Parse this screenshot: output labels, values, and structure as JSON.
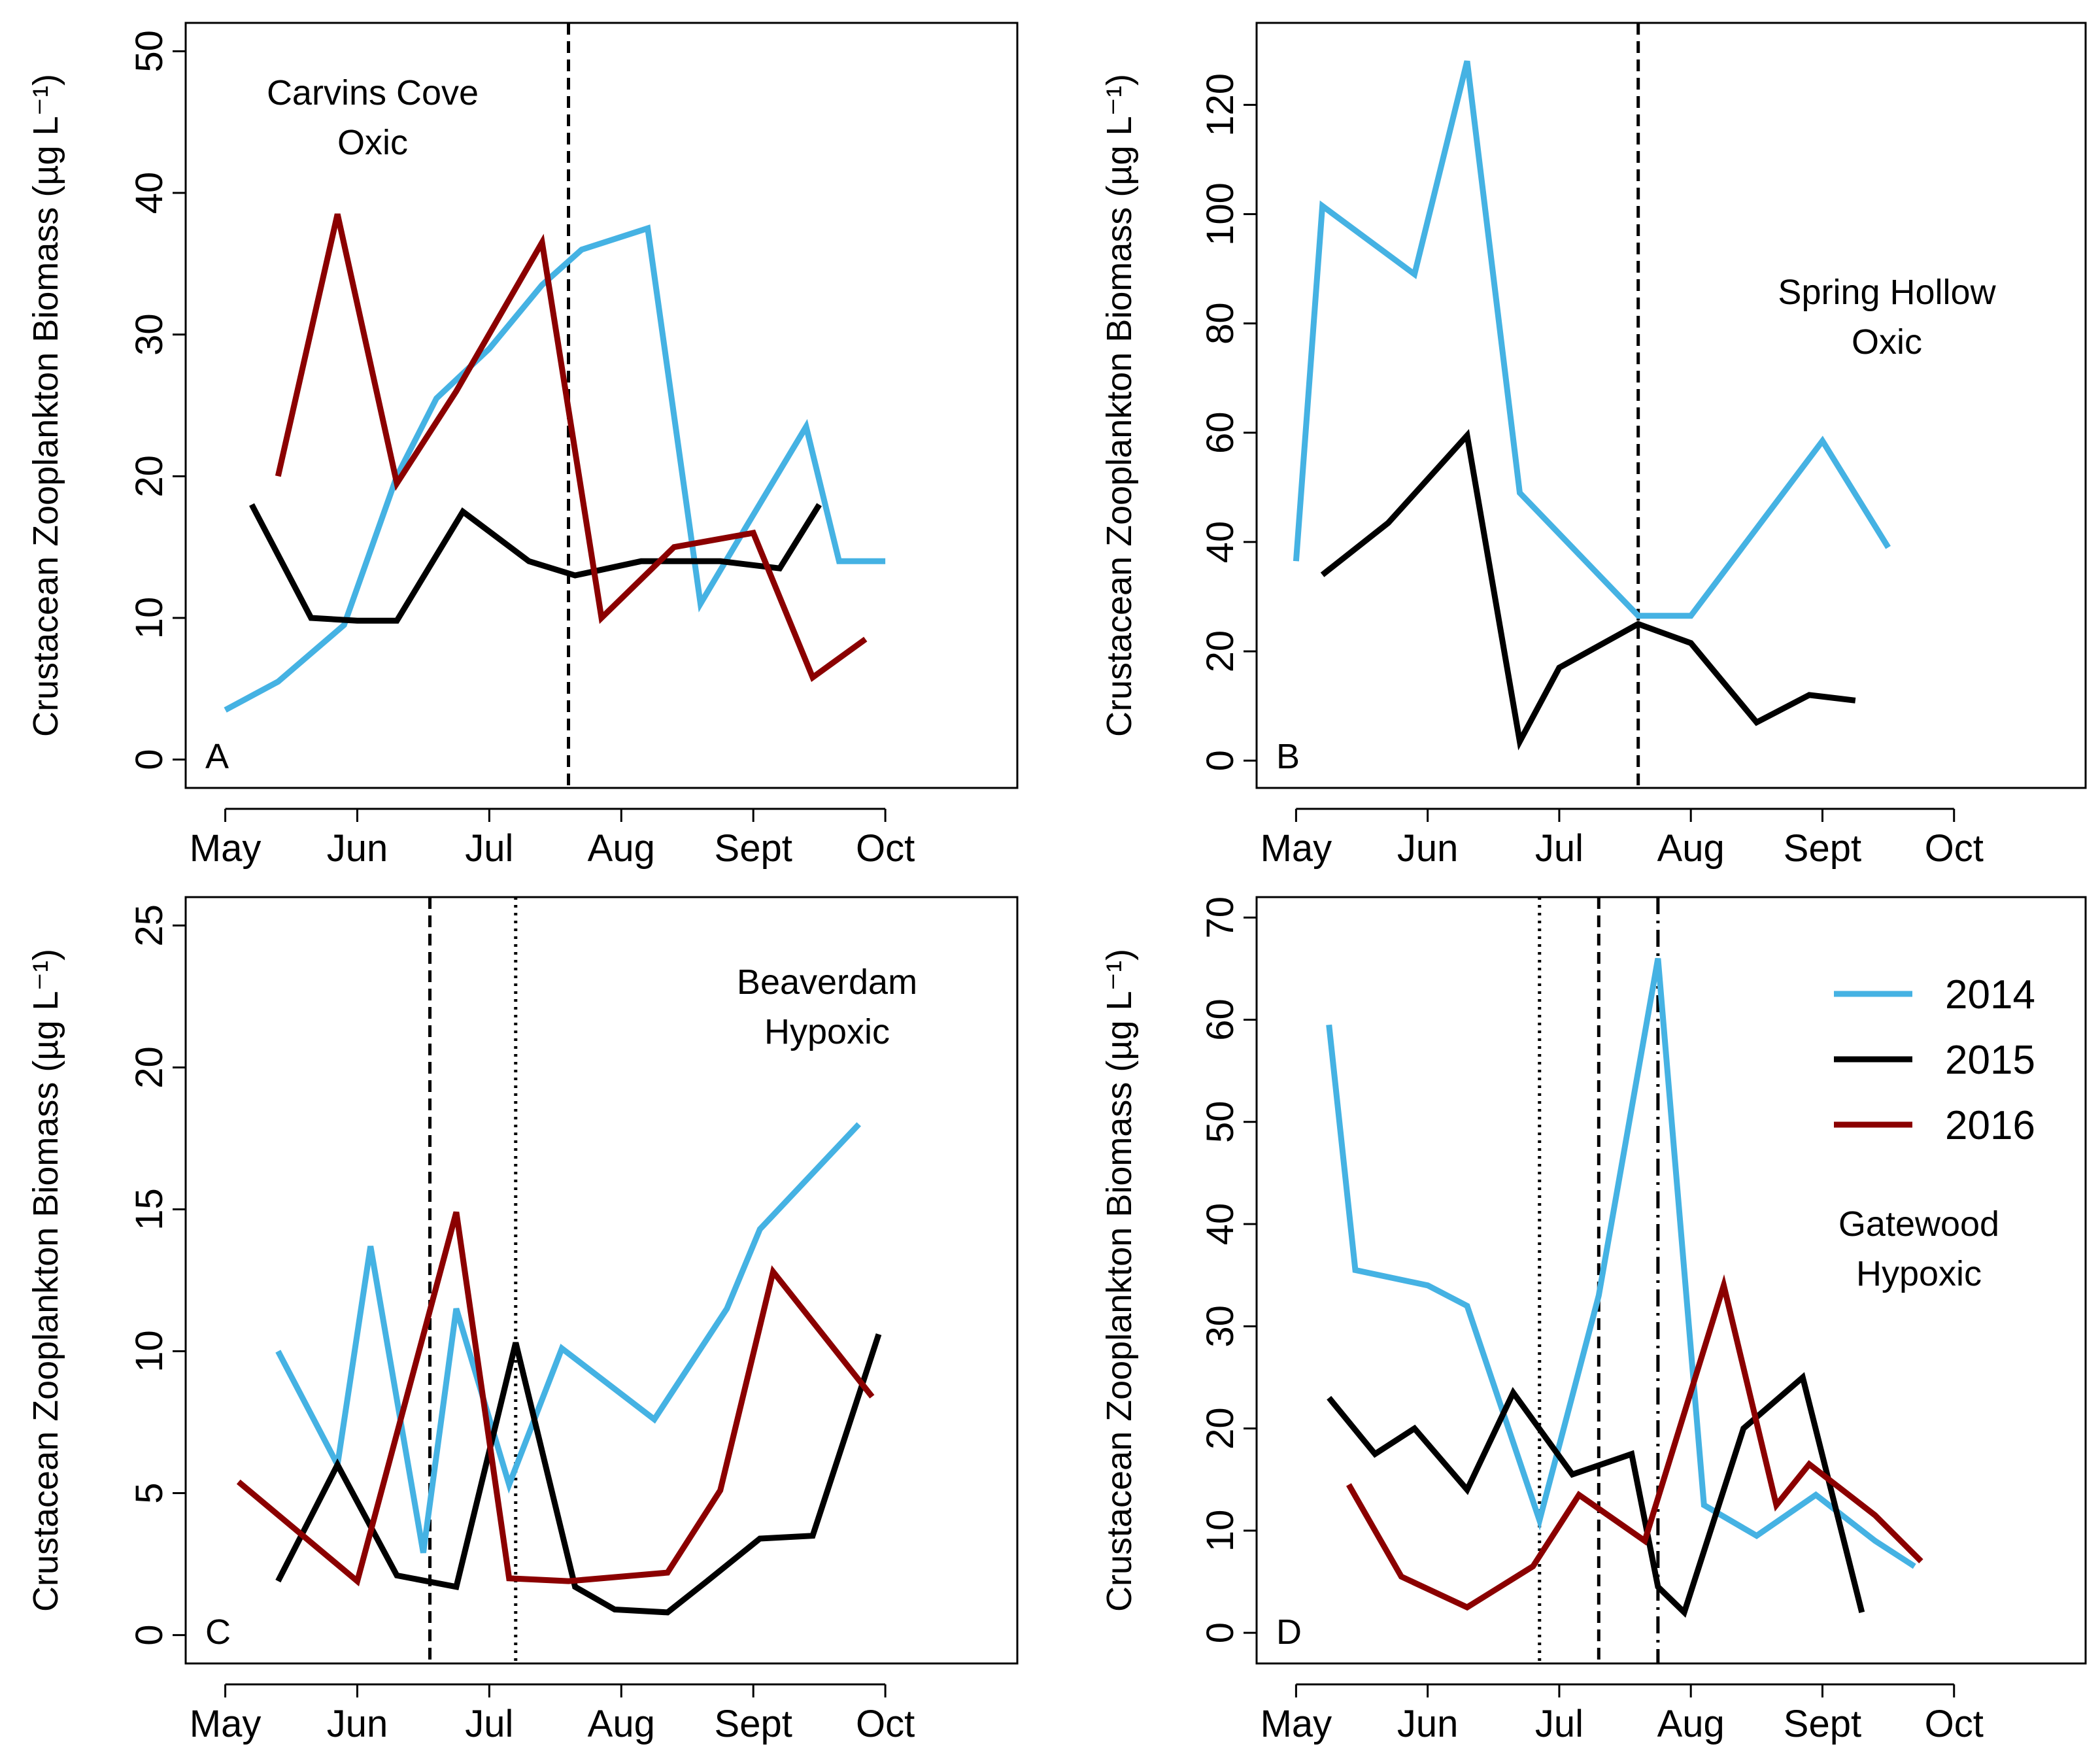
{
  "chart_data": [
    {
      "type": "line",
      "panel": "A",
      "annotation": [
        "Carvins Cove",
        "Oxic"
      ],
      "ylabel": "Crustacean Zooplankton Biomass (µg L⁻¹)",
      "yticks": [
        0,
        10,
        20,
        30,
        40,
        50
      ],
      "ylim": [
        -2,
        52
      ],
      "xticks": [
        "May",
        "Jun",
        "Jul",
        "Aug",
        "Sept",
        "Oct"
      ],
      "xlim": [
        -0.3,
        6.0
      ],
      "vlines": [
        {
          "x": 2.6,
          "style": "dashed"
        }
      ],
      "series": [
        {
          "name": "2014",
          "x": [
            0.0,
            0.4,
            0.9,
            1.3,
            1.6,
            2.0,
            2.4,
            2.7,
            3.2,
            3.6,
            3.95,
            4.4,
            4.65,
            5.0
          ],
          "values": [
            3.5,
            5.5,
            9.5,
            20.0,
            25.5,
            29.0,
            33.5,
            36.0,
            37.5,
            11.0,
            16.5,
            23.5,
            14.0,
            14.0
          ]
        },
        {
          "name": "2015",
          "x": [
            0.2,
            0.65,
            1.0,
            1.3,
            1.8,
            2.3,
            2.65,
            3.15,
            3.75,
            4.2,
            4.5
          ],
          "values": [
            18.0,
            10.0,
            9.8,
            9.8,
            17.5,
            14.0,
            13.0,
            14.0,
            14.0,
            13.5,
            18.0
          ]
        },
        {
          "name": "2016",
          "x": [
            0.4,
            0.85,
            1.3,
            1.75,
            2.4,
            2.85,
            3.4,
            4.0,
            4.45,
            4.85
          ],
          "values": [
            20.0,
            38.5,
            19.5,
            26.0,
            36.5,
            10.0,
            15.0,
            16.0,
            5.8,
            8.5
          ]
        }
      ]
    },
    {
      "type": "line",
      "panel": "B",
      "annotation": [
        "Spring Hollow",
        "Oxic"
      ],
      "ylabel": "Crustacean Zooplankton Biomass (µg L⁻¹)",
      "yticks": [
        0,
        20,
        40,
        60,
        80,
        100,
        120
      ],
      "ylim": [
        -5,
        135
      ],
      "xticks": [
        "May",
        "Jun",
        "Jul",
        "Aug",
        "Sept",
        "Oct"
      ],
      "xlim": [
        -0.3,
        6.0
      ],
      "vlines": [
        {
          "x": 2.6,
          "style": "dashed"
        }
      ],
      "series": [
        {
          "name": "2014",
          "x": [
            0.0,
            0.2,
            0.9,
            1.3,
            1.7,
            2.6,
            3.0,
            4.0,
            4.5
          ],
          "values": [
            36.5,
            101.5,
            89.0,
            128.0,
            49.0,
            26.5,
            26.5,
            58.5,
            39.0
          ]
        },
        {
          "name": "2015",
          "x": [
            0.2,
            0.7,
            1.3,
            1.7,
            2.0,
            2.6,
            3.0,
            3.5,
            3.9,
            4.25
          ],
          "values": [
            34.0,
            43.5,
            59.5,
            3.5,
            17.0,
            25.0,
            21.5,
            7.0,
            12.0,
            11.0
          ]
        }
      ]
    },
    {
      "type": "line",
      "panel": "C",
      "annotation": [
        "Beaverdam",
        "Hypoxic"
      ],
      "ylabel": "Crustacean Zooplankton Biomass (µg L⁻¹)",
      "yticks": [
        0,
        5,
        10,
        15,
        20,
        25
      ],
      "ylim": [
        -1,
        26
      ],
      "xticks": [
        "May",
        "Jun",
        "Jul",
        "Aug",
        "Sept",
        "Oct"
      ],
      "xlim": [
        -0.3,
        6.0
      ],
      "vlines": [
        {
          "x": 1.55,
          "style": "dashed"
        },
        {
          "x": 2.2,
          "style": "dotted"
        }
      ],
      "series": [
        {
          "name": "2014",
          "x": [
            0.4,
            0.85,
            1.1,
            1.5,
            1.75,
            2.15,
            2.55,
            3.25,
            3.8,
            4.05,
            4.8
          ],
          "values": [
            10.0,
            6.0,
            13.7,
            2.9,
            11.5,
            5.3,
            10.1,
            7.6,
            11.5,
            14.3,
            18.0
          ]
        },
        {
          "name": "2015",
          "x": [
            0.4,
            0.85,
            1.3,
            1.75,
            2.2,
            2.65,
            2.95,
            3.35,
            3.65,
            4.05,
            4.45,
            4.95
          ],
          "values": [
            1.9,
            6.0,
            2.1,
            1.7,
            10.3,
            1.7,
            0.9,
            0.8,
            1.9,
            3.4,
            3.5,
            10.6
          ]
        },
        {
          "name": "2016",
          "x": [
            0.1,
            1.0,
            1.75,
            2.15,
            2.6,
            3.35,
            3.75,
            4.15,
            4.9
          ],
          "values": [
            5.4,
            1.9,
            14.9,
            2.0,
            1.9,
            2.2,
            5.1,
            12.8,
            8.4
          ]
        }
      ]
    },
    {
      "type": "line",
      "panel": "D",
      "annotation": [
        "Gatewood",
        "Hypoxic"
      ],
      "ylabel": "Crustacean Zooplankton Biomass (µg L⁻¹)",
      "yticks": [
        0,
        10,
        20,
        30,
        40,
        50,
        60,
        70
      ],
      "ylim": [
        -3,
        72
      ],
      "xticks": [
        "May",
        "Jun",
        "Jul",
        "Aug",
        "Sept",
        "Oct"
      ],
      "xlim": [
        -0.3,
        6.0
      ],
      "vlines": [
        {
          "x": 1.85,
          "style": "dotted"
        },
        {
          "x": 2.3,
          "style": "dashed"
        },
        {
          "x": 2.75,
          "style": "dotdash"
        }
      ],
      "series": [
        {
          "name": "2014",
          "x": [
            0.25,
            0.45,
            1.0,
            1.3,
            1.85,
            2.3,
            2.75,
            3.1,
            3.5,
            3.95,
            4.4,
            4.7
          ],
          "values": [
            59.5,
            35.5,
            34.0,
            32.0,
            11.0,
            33.0,
            66.0,
            12.5,
            9.5,
            13.5,
            9.0,
            6.5
          ]
        },
        {
          "name": "2015",
          "x": [
            0.25,
            0.6,
            0.9,
            1.3,
            1.65,
            2.1,
            2.55,
            2.75,
            2.95,
            3.4,
            3.85,
            4.3
          ],
          "values": [
            23.0,
            17.5,
            20.0,
            14.0,
            23.5,
            15.5,
            17.5,
            4.5,
            2.0,
            20.0,
            25.0,
            2.0
          ]
        },
        {
          "name": "2016",
          "x": [
            0.4,
            0.8,
            1.3,
            1.8,
            2.15,
            2.65,
            3.25,
            3.65,
            3.9,
            4.4,
            4.75
          ],
          "values": [
            14.5,
            5.5,
            2.5,
            6.5,
            13.5,
            9.0,
            34.0,
            12.5,
            16.5,
            11.5,
            7.0
          ]
        }
      ]
    }
  ],
  "legend": {
    "entries": [
      {
        "label": "2014",
        "color": "#45b2e3"
      },
      {
        "label": "2015",
        "color": "#000000"
      },
      {
        "label": "2016",
        "color": "#8b0000"
      }
    ],
    "placement": "top-right of panel D"
  }
}
